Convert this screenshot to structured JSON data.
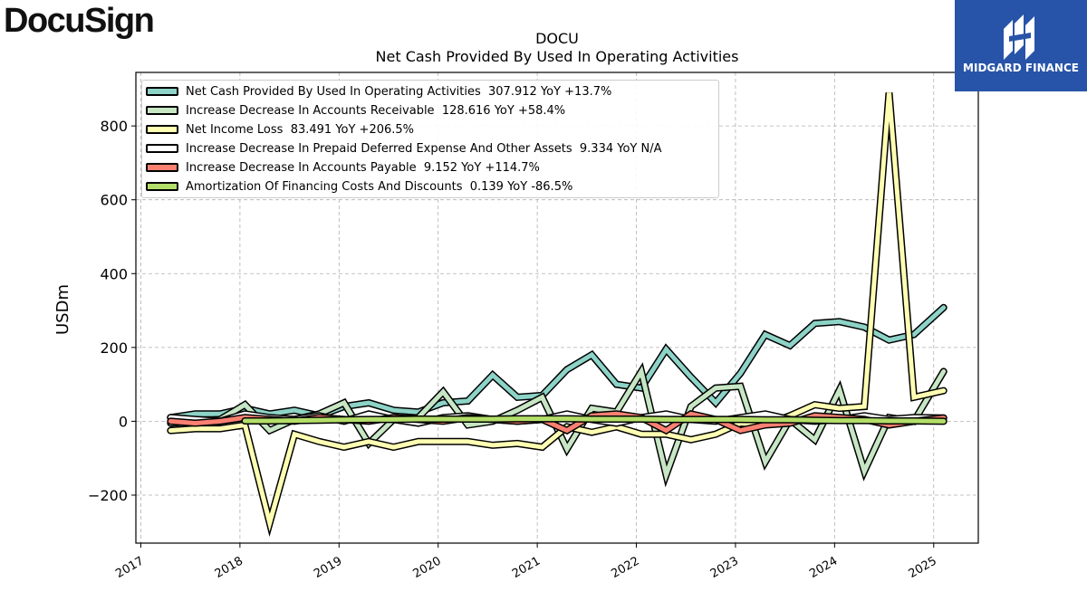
{
  "brand": {
    "left_logo": "DocuSign",
    "right_logo": "MIDGARD FINANCE",
    "right_color": "#2754a8"
  },
  "chart_data": {
    "type": "line",
    "title": "DOCU",
    "subtitle": "Net Cash Provided By Used In Operating Activities",
    "ylabel": "USDm",
    "xlabel": "",
    "xlim": [
      2016.95,
      2025.45
    ],
    "ylim": [
      -330,
      945
    ],
    "x_ticks": [
      2017,
      2018,
      2019,
      2020,
      2021,
      2022,
      2023,
      2024,
      2025
    ],
    "x_tick_labels": [
      "2017",
      "2018",
      "2019",
      "2020",
      "2021",
      "2022",
      "2023",
      "2024",
      "2025"
    ],
    "y_ticks": [
      -200,
      0,
      200,
      400,
      600,
      800
    ],
    "y_tick_labels": [
      "−200",
      "0",
      "200",
      "400",
      "600",
      "800"
    ],
    "grid": true,
    "legend_position": "top-left",
    "series": [
      {
        "name": "Net Cash Provided By Used In Operating Activities",
        "legend": "Net Cash Provided By Used In Operating Activities  307.912 YoY +13.7%",
        "color": "#8dd3c7",
        "x": [
          2017.3,
          2017.55,
          2017.8,
          2018.05,
          2018.3,
          2018.55,
          2018.8,
          2019.05,
          2019.3,
          2019.55,
          2019.8,
          2020.05,
          2020.3,
          2020.55,
          2020.8,
          2021.05,
          2021.3,
          2021.55,
          2021.8,
          2022.05,
          2022.3,
          2022.55,
          2022.8,
          2023.05,
          2023.3,
          2023.55,
          2023.8,
          2024.05,
          2024.3,
          2024.55,
          2024.8,
          2025.1
        ],
        "y": [
          10,
          20,
          20,
          35,
          20,
          30,
          15,
          40,
          50,
          30,
          25,
          50,
          55,
          125,
          65,
          70,
          140,
          180,
          100,
          90,
          195,
          120,
          50,
          130,
          235,
          205,
          265,
          270,
          255,
          220,
          235,
          308
        ]
      },
      {
        "name": "Increase Decrease In Accounts Receivable",
        "legend": "Increase Decrease In Accounts Receivable  128.616 YoY +58.4%",
        "color": "#c6e6c4",
        "x": [
          2017.3,
          2017.55,
          2017.8,
          2018.05,
          2018.3,
          2018.55,
          2018.8,
          2019.05,
          2019.3,
          2019.55,
          2019.8,
          2020.05,
          2020.3,
          2020.55,
          2020.8,
          2021.05,
          2021.3,
          2021.55,
          2021.8,
          2022.05,
          2022.3,
          2022.55,
          2022.8,
          2023.05,
          2023.3,
          2023.55,
          2023.8,
          2024.05,
          2024.3,
          2024.55,
          2024.8,
          2025.1
        ],
        "y": [
          -5,
          0,
          5,
          45,
          -25,
          5,
          20,
          50,
          -60,
          5,
          10,
          80,
          -10,
          0,
          30,
          65,
          -75,
          35,
          25,
          135,
          -145,
          40,
          90,
          95,
          -110,
          5,
          -50,
          85,
          -135,
          10,
          0,
          135
        ]
      },
      {
        "name": "Net Income Loss",
        "legend": "Net Income Loss  83.491 YoY +206.5%",
        "color": "#ffffb3",
        "x": [
          2017.3,
          2017.55,
          2017.8,
          2018.05,
          2018.3,
          2018.55,
          2018.8,
          2019.05,
          2019.3,
          2019.55,
          2019.8,
          2020.05,
          2020.3,
          2020.55,
          2020.8,
          2021.05,
          2021.3,
          2021.55,
          2021.8,
          2022.05,
          2022.3,
          2022.55,
          2022.8,
          2023.05,
          2023.3,
          2023.55,
          2023.8,
          2024.05,
          2024.3,
          2024.55,
          2024.8,
          2025.1
        ],
        "y": [
          -25,
          -20,
          -20,
          -10,
          -275,
          -35,
          -55,
          -70,
          -55,
          -70,
          -55,
          -55,
          -55,
          -65,
          -60,
          -70,
          -15,
          -30,
          -15,
          -35,
          -35,
          -50,
          -35,
          -5,
          -10,
          15,
          45,
          35,
          40,
          890,
          65,
          83
        ]
      },
      {
        "name": "Increase Decrease In Prepaid Deferred Expense And Other Assets",
        "legend": "Increase Decrease In Prepaid Deferred Expense And Other Assets  9.334 YoY N/A",
        "color": "#ffffff",
        "x": [
          2017.3,
          2017.55,
          2017.8,
          2018.05,
          2018.3,
          2018.55,
          2018.8,
          2019.05,
          2019.3,
          2019.55,
          2019.8,
          2020.05,
          2020.3,
          2020.55,
          2020.8,
          2021.05,
          2021.3,
          2021.55,
          2021.8,
          2022.05,
          2022.3,
          2022.55,
          2022.8,
          2023.05,
          2023.3,
          2023.55,
          2023.8,
          2024.05,
          2024.3,
          2024.55,
          2024.8,
          2025.1
        ],
        "y": [
          10,
          5,
          0,
          20,
          10,
          5,
          15,
          0,
          20,
          5,
          -5,
          10,
          15,
          5,
          0,
          5,
          20,
          5,
          -5,
          10,
          20,
          5,
          0,
          10,
          20,
          5,
          0,
          5,
          15,
          5,
          10,
          9
        ]
      },
      {
        "name": "Increase Decrease In Accounts Payable",
        "legend": "Increase Decrease In Accounts Payable  9.152 YoY +114.7%",
        "color": "#fb8072",
        "x": [
          2017.3,
          2017.55,
          2017.8,
          2018.05,
          2018.3,
          2018.55,
          2018.8,
          2019.05,
          2019.3,
          2019.55,
          2019.8,
          2020.05,
          2020.3,
          2020.55,
          2020.8,
          2021.05,
          2021.3,
          2021.55,
          2021.8,
          2022.05,
          2022.3,
          2022.55,
          2022.8,
          2023.05,
          2023.3,
          2023.55,
          2023.8,
          2024.05,
          2024.3,
          2024.55,
          2024.8,
          2025.1
        ],
        "y": [
          0,
          -5,
          0,
          10,
          5,
          0,
          10,
          5,
          0,
          10,
          5,
          0,
          10,
          5,
          0,
          5,
          -25,
          15,
          20,
          10,
          -25,
          20,
          5,
          -25,
          -10,
          -5,
          15,
          10,
          5,
          -10,
          0,
          9
        ]
      },
      {
        "name": "Amortization Of Financing Costs And Discounts",
        "legend": "Amortization Of Financing Costs And Discounts  0.139 YoY -86.5%",
        "color": "#b3de69",
        "x": [
          2018.05,
          2018.3,
          2018.55,
          2018.8,
          2019.05,
          2019.3,
          2019.55,
          2019.8,
          2020.05,
          2020.3,
          2020.55,
          2020.8,
          2021.05,
          2021.3,
          2021.55,
          2021.8,
          2022.05,
          2022.3,
          2022.55,
          2022.8,
          2023.05,
          2023.3,
          2023.55,
          2023.8,
          2024.05,
          2024.3,
          2024.55,
          2024.8,
          2025.1
        ],
        "y": [
          1,
          1,
          2,
          3,
          4,
          5,
          5,
          6,
          6,
          6,
          6,
          7,
          7,
          7,
          6,
          6,
          6,
          5,
          5,
          5,
          5,
          4,
          4,
          3,
          2,
          2,
          1,
          1,
          0.139
        ]
      }
    ]
  }
}
